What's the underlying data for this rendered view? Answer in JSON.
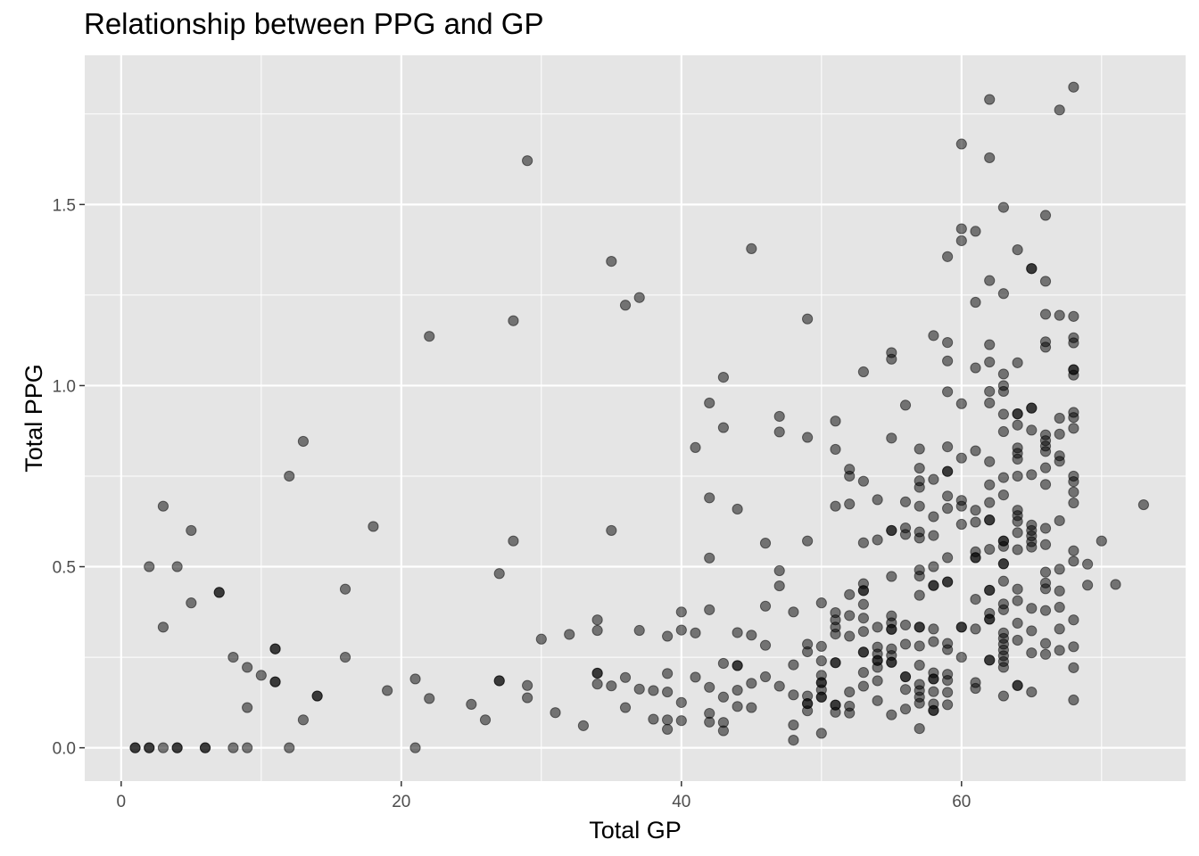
{
  "chart_data": {
    "type": "scatter",
    "title": "Relationship between PPG and GP",
    "xlabel": "Total GP",
    "ylabel": "Total PPG",
    "xlim": [
      -2.6,
      76.0
    ],
    "ylim": [
      -0.092,
      1.912
    ],
    "x_ticks": [
      0,
      20,
      40,
      60
    ],
    "y_ticks": [
      0.0,
      0.5,
      1.0,
      1.5
    ],
    "x_tick_labels": [
      "0",
      "20",
      "40",
      "60"
    ],
    "y_tick_labels": [
      "0.0",
      "0.5",
      "1.0",
      "1.5"
    ],
    "grid": true,
    "legend": "none",
    "colors": {
      "panel": "#e5e5e5",
      "grid": "#ffffff",
      "point": "#000000",
      "text": "#4d4d4d"
    },
    "point_alpha": 0.5,
    "points": [
      [
        1,
        0
      ],
      [
        1,
        0
      ],
      [
        2,
        0
      ],
      [
        2,
        0
      ],
      [
        3,
        0
      ],
      [
        4,
        0
      ],
      [
        4,
        0
      ],
      [
        6,
        0
      ],
      [
        6,
        0
      ],
      [
        8,
        0
      ],
      [
        9,
        0
      ],
      [
        12,
        0
      ],
      [
        21,
        0
      ],
      [
        2,
        0.5
      ],
      [
        3,
        0.667
      ],
      [
        3,
        0.333
      ],
      [
        4,
        0.5
      ],
      [
        5,
        0.6
      ],
      [
        5,
        0.4
      ],
      [
        7,
        0.429
      ],
      [
        7,
        0.429
      ],
      [
        8,
        0.25
      ],
      [
        9,
        0.222
      ],
      [
        9,
        0.111
      ],
      [
        10,
        0.2
      ],
      [
        11,
        0.273
      ],
      [
        11,
        0.273
      ],
      [
        11,
        0.182
      ],
      [
        11,
        0.182
      ],
      [
        12,
        0.75
      ],
      [
        13,
        0.846
      ],
      [
        13,
        0.077
      ],
      [
        14,
        0.143
      ],
      [
        14,
        0.143
      ],
      [
        16,
        0.438
      ],
      [
        16,
        0.25
      ],
      [
        18,
        0.611
      ],
      [
        19,
        0.158
      ],
      [
        21,
        0.19
      ],
      [
        22,
        1.136
      ],
      [
        22,
        0.136
      ],
      [
        25,
        0.12
      ],
      [
        26,
        0.077
      ],
      [
        27,
        0.481
      ],
      [
        27,
        0.185
      ],
      [
        27,
        0.185
      ],
      [
        28,
        1.179
      ],
      [
        28,
        0.571
      ],
      [
        29,
        1.621
      ],
      [
        29,
        0.172
      ],
      [
        29,
        0.138
      ],
      [
        30,
        0.3
      ],
      [
        31,
        0.097
      ],
      [
        32,
        0.313
      ],
      [
        33,
        0.061
      ],
      [
        34,
        0.353
      ],
      [
        34,
        0.324
      ],
      [
        34,
        0.206
      ],
      [
        34,
        0.206
      ],
      [
        34,
        0.176
      ],
      [
        35,
        1.343
      ],
      [
        35,
        0.6
      ],
      [
        35,
        0.171
      ],
      [
        36,
        1.222
      ],
      [
        36,
        0.194
      ],
      [
        36,
        0.111
      ],
      [
        37,
        1.243
      ],
      [
        37,
        0.324
      ],
      [
        37,
        0.162
      ],
      [
        38,
        0.158
      ],
      [
        38,
        0.079
      ],
      [
        39,
        0.308
      ],
      [
        39,
        0.205
      ],
      [
        39,
        0.154
      ],
      [
        39,
        0.077
      ],
      [
        39,
        0.051
      ],
      [
        40,
        0.375
      ],
      [
        40,
        0.325
      ],
      [
        40,
        0.125
      ],
      [
        40,
        0.075
      ],
      [
        41,
        0.829
      ],
      [
        41,
        0.317
      ],
      [
        41,
        0.195
      ],
      [
        42,
        0.952
      ],
      [
        42,
        0.69
      ],
      [
        42,
        0.524
      ],
      [
        42,
        0.381
      ],
      [
        42,
        0.167
      ],
      [
        42,
        0.095
      ],
      [
        42,
        0.071
      ],
      [
        43,
        1.023
      ],
      [
        43,
        0.884
      ],
      [
        43,
        0.233
      ],
      [
        43,
        0.14
      ],
      [
        43,
        0.07
      ],
      [
        43,
        0.047
      ],
      [
        44,
        0.659
      ],
      [
        44,
        0.318
      ],
      [
        44,
        0.227
      ],
      [
        44,
        0.227
      ],
      [
        44,
        0.159
      ],
      [
        44,
        0.114
      ],
      [
        45,
        1.378
      ],
      [
        45,
        0.311
      ],
      [
        45,
        0.178
      ],
      [
        45,
        0.111
      ],
      [
        46,
        0.565
      ],
      [
        46,
        0.391
      ],
      [
        46,
        0.283
      ],
      [
        46,
        0.196
      ],
      [
        47,
        0.915
      ],
      [
        47,
        0.872
      ],
      [
        47,
        0.489
      ],
      [
        47,
        0.447
      ],
      [
        47,
        0.17
      ],
      [
        48,
        0.375
      ],
      [
        48,
        0.229
      ],
      [
        48,
        0.146
      ],
      [
        48,
        0.063
      ],
      [
        48,
        0.021
      ],
      [
        49,
        1.184
      ],
      [
        49,
        0.857
      ],
      [
        49,
        0.571
      ],
      [
        49,
        0.286
      ],
      [
        49,
        0.265
      ],
      [
        49,
        0.143
      ],
      [
        49,
        0.122
      ],
      [
        49,
        0.122
      ],
      [
        49,
        0.102
      ],
      [
        50,
        0.4
      ],
      [
        50,
        0.28
      ],
      [
        50,
        0.24
      ],
      [
        50,
        0.2
      ],
      [
        50,
        0.18
      ],
      [
        50,
        0.18
      ],
      [
        50,
        0.16
      ],
      [
        50,
        0.14
      ],
      [
        50,
        0.14
      ],
      [
        50,
        0.04
      ],
      [
        51,
        0.902
      ],
      [
        51,
        0.824
      ],
      [
        51,
        0.667
      ],
      [
        51,
        0.373
      ],
      [
        51,
        0.353
      ],
      [
        51,
        0.333
      ],
      [
        51,
        0.314
      ],
      [
        51,
        0.235
      ],
      [
        51,
        0.235
      ],
      [
        51,
        0.118
      ],
      [
        51,
        0.118
      ],
      [
        51,
        0.098
      ],
      [
        52,
        0.769
      ],
      [
        52,
        0.75
      ],
      [
        52,
        0.673
      ],
      [
        52,
        0.423
      ],
      [
        52,
        0.365
      ],
      [
        52,
        0.308
      ],
      [
        52,
        0.154
      ],
      [
        52,
        0.115
      ],
      [
        52,
        0.096
      ],
      [
        53,
        1.038
      ],
      [
        53,
        0.736
      ],
      [
        53,
        0.566
      ],
      [
        53,
        0.453
      ],
      [
        53,
        0.434
      ],
      [
        53,
        0.434
      ],
      [
        53,
        0.396
      ],
      [
        53,
        0.358
      ],
      [
        53,
        0.321
      ],
      [
        53,
        0.264
      ],
      [
        53,
        0.264
      ],
      [
        53,
        0.208
      ],
      [
        53,
        0.17
      ],
      [
        54,
        0.685
      ],
      [
        54,
        0.574
      ],
      [
        54,
        0.333
      ],
      [
        54,
        0.278
      ],
      [
        54,
        0.259
      ],
      [
        54,
        0.241
      ],
      [
        54,
        0.241
      ],
      [
        54,
        0.222
      ],
      [
        54,
        0.185
      ],
      [
        54,
        0.13
      ],
      [
        55,
        1.091
      ],
      [
        55,
        1.073
      ],
      [
        55,
        0.855
      ],
      [
        55,
        0.6
      ],
      [
        55,
        0.6
      ],
      [
        55,
        0.473
      ],
      [
        55,
        0.364
      ],
      [
        55,
        0.345
      ],
      [
        55,
        0.327
      ],
      [
        55,
        0.327
      ],
      [
        55,
        0.273
      ],
      [
        55,
        0.255
      ],
      [
        55,
        0.236
      ],
      [
        55,
        0.236
      ],
      [
        55,
        0.091
      ],
      [
        56,
        0.946
      ],
      [
        56,
        0.679
      ],
      [
        56,
        0.607
      ],
      [
        56,
        0.589
      ],
      [
        56,
        0.339
      ],
      [
        56,
        0.286
      ],
      [
        56,
        0.196
      ],
      [
        56,
        0.196
      ],
      [
        56,
        0.161
      ],
      [
        56,
        0.107
      ],
      [
        57,
        0.825
      ],
      [
        57,
        0.772
      ],
      [
        57,
        0.737
      ],
      [
        57,
        0.719
      ],
      [
        57,
        0.667
      ],
      [
        57,
        0.596
      ],
      [
        57,
        0.579
      ],
      [
        57,
        0.491
      ],
      [
        57,
        0.474
      ],
      [
        57,
        0.421
      ],
      [
        57,
        0.333
      ],
      [
        57,
        0.333
      ],
      [
        57,
        0.281
      ],
      [
        57,
        0.228
      ],
      [
        57,
        0.175
      ],
      [
        57,
        0.158
      ],
      [
        57,
        0.14
      ],
      [
        57,
        0.123
      ],
      [
        57,
        0.053
      ],
      [
        58,
        1.138
      ],
      [
        58,
        0.741
      ],
      [
        58,
        0.638
      ],
      [
        58,
        0.586
      ],
      [
        58,
        0.5
      ],
      [
        58,
        0.448
      ],
      [
        58,
        0.448
      ],
      [
        58,
        0.328
      ],
      [
        58,
        0.293
      ],
      [
        58,
        0.207
      ],
      [
        58,
        0.19
      ],
      [
        58,
        0.19
      ],
      [
        58,
        0.155
      ],
      [
        58,
        0.121
      ],
      [
        58,
        0.103
      ],
      [
        58,
        0.103
      ],
      [
        59,
        1.356
      ],
      [
        59,
        1.119
      ],
      [
        59,
        1.068
      ],
      [
        59,
        0.983
      ],
      [
        59,
        0.831
      ],
      [
        59,
        0.763
      ],
      [
        59,
        0.763
      ],
      [
        59,
        0.695
      ],
      [
        59,
        0.661
      ],
      [
        59,
        0.525
      ],
      [
        59,
        0.458
      ],
      [
        59,
        0.458
      ],
      [
        59,
        0.288
      ],
      [
        59,
        0.271
      ],
      [
        59,
        0.203
      ],
      [
        59,
        0.186
      ],
      [
        59,
        0.153
      ],
      [
        59,
        0.119
      ],
      [
        60,
        1.667
      ],
      [
        60,
        1.433
      ],
      [
        60,
        1.4
      ],
      [
        60,
        0.95
      ],
      [
        60,
        0.8
      ],
      [
        60,
        0.683
      ],
      [
        60,
        0.667
      ],
      [
        60,
        0.617
      ],
      [
        60,
        0.333
      ],
      [
        60,
        0.333
      ],
      [
        60,
        0.25
      ],
      [
        61,
        1.426
      ],
      [
        61,
        1.23
      ],
      [
        61,
        1.049
      ],
      [
        61,
        0.82
      ],
      [
        61,
        0.656
      ],
      [
        61,
        0.623
      ],
      [
        61,
        0.541
      ],
      [
        61,
        0.525
      ],
      [
        61,
        0.525
      ],
      [
        61,
        0.41
      ],
      [
        61,
        0.328
      ],
      [
        61,
        0.18
      ],
      [
        61,
        0.164
      ],
      [
        62,
        1.79
      ],
      [
        62,
        1.629
      ],
      [
        62,
        1.29
      ],
      [
        62,
        1.113
      ],
      [
        62,
        1.065
      ],
      [
        62,
        0.984
      ],
      [
        62,
        0.952
      ],
      [
        62,
        0.79
      ],
      [
        62,
        0.726
      ],
      [
        62,
        0.677
      ],
      [
        62,
        0.629
      ],
      [
        62,
        0.629
      ],
      [
        62,
        0.548
      ],
      [
        62,
        0.435
      ],
      [
        62,
        0.435
      ],
      [
        62,
        0.371
      ],
      [
        62,
        0.355
      ],
      [
        62,
        0.355
      ],
      [
        62,
        0.242
      ],
      [
        62,
        0.242
      ],
      [
        63,
        1.492
      ],
      [
        63,
        1.254
      ],
      [
        63,
        1.032
      ],
      [
        63,
        1.0
      ],
      [
        63,
        0.984
      ],
      [
        63,
        0.921
      ],
      [
        63,
        0.873
      ],
      [
        63,
        0.746
      ],
      [
        63,
        0.698
      ],
      [
        63,
        0.571
      ],
      [
        63,
        0.571
      ],
      [
        63,
        0.556
      ],
      [
        63,
        0.508
      ],
      [
        63,
        0.508
      ],
      [
        63,
        0.46
      ],
      [
        63,
        0.397
      ],
      [
        63,
        0.381
      ],
      [
        63,
        0.317
      ],
      [
        63,
        0.302
      ],
      [
        63,
        0.286
      ],
      [
        63,
        0.27
      ],
      [
        63,
        0.254
      ],
      [
        63,
        0.238
      ],
      [
        63,
        0.222
      ],
      [
        63,
        0.143
      ],
      [
        64,
        1.375
      ],
      [
        64,
        1.063
      ],
      [
        64,
        0.922
      ],
      [
        64,
        0.922
      ],
      [
        64,
        0.891
      ],
      [
        64,
        0.828
      ],
      [
        64,
        0.813
      ],
      [
        64,
        0.797
      ],
      [
        64,
        0.75
      ],
      [
        64,
        0.656
      ],
      [
        64,
        0.641
      ],
      [
        64,
        0.625
      ],
      [
        64,
        0.594
      ],
      [
        64,
        0.547
      ],
      [
        64,
        0.438
      ],
      [
        64,
        0.406
      ],
      [
        64,
        0.344
      ],
      [
        64,
        0.297
      ],
      [
        64,
        0.172
      ],
      [
        64,
        0.172
      ],
      [
        65,
        1.323
      ],
      [
        65,
        1.323
      ],
      [
        65,
        0.938
      ],
      [
        65,
        0.938
      ],
      [
        65,
        0.877
      ],
      [
        65,
        0.754
      ],
      [
        65,
        0.615
      ],
      [
        65,
        0.6
      ],
      [
        65,
        0.585
      ],
      [
        65,
        0.569
      ],
      [
        65,
        0.554
      ],
      [
        65,
        0.385
      ],
      [
        65,
        0.323
      ],
      [
        65,
        0.262
      ],
      [
        65,
        0.154
      ],
      [
        66,
        1.47
      ],
      [
        66,
        1.288
      ],
      [
        66,
        1.197
      ],
      [
        66,
        1.121
      ],
      [
        66,
        1.106
      ],
      [
        66,
        0.864
      ],
      [
        66,
        0.848
      ],
      [
        66,
        0.833
      ],
      [
        66,
        0.818
      ],
      [
        66,
        0.773
      ],
      [
        66,
        0.727
      ],
      [
        66,
        0.606
      ],
      [
        66,
        0.561
      ],
      [
        66,
        0.485
      ],
      [
        66,
        0.455
      ],
      [
        66,
        0.439
      ],
      [
        66,
        0.379
      ],
      [
        66,
        0.288
      ],
      [
        66,
        0.258
      ],
      [
        67,
        1.761
      ],
      [
        67,
        1.194
      ],
      [
        67,
        0.91
      ],
      [
        67,
        0.866
      ],
      [
        67,
        0.806
      ],
      [
        67,
        0.791
      ],
      [
        67,
        0.627
      ],
      [
        67,
        0.493
      ],
      [
        67,
        0.433
      ],
      [
        67,
        0.388
      ],
      [
        67,
        0.328
      ],
      [
        67,
        0.269
      ],
      [
        68,
        1.824
      ],
      [
        68,
        1.191
      ],
      [
        68,
        1.132
      ],
      [
        68,
        1.118
      ],
      [
        68,
        1.044
      ],
      [
        68,
        1.044
      ],
      [
        68,
        1.029
      ],
      [
        68,
        0.926
      ],
      [
        68,
        0.912
      ],
      [
        68,
        0.882
      ],
      [
        68,
        0.75
      ],
      [
        68,
        0.735
      ],
      [
        68,
        0.706
      ],
      [
        68,
        0.676
      ],
      [
        68,
        0.544
      ],
      [
        68,
        0.515
      ],
      [
        68,
        0.353
      ],
      [
        68,
        0.279
      ],
      [
        68,
        0.221
      ],
      [
        68,
        0.132
      ],
      [
        69,
        0.507
      ],
      [
        69,
        0.449
      ],
      [
        70,
        0.571
      ],
      [
        71,
        0.451
      ],
      [
        73,
        0.671
      ]
    ]
  }
}
